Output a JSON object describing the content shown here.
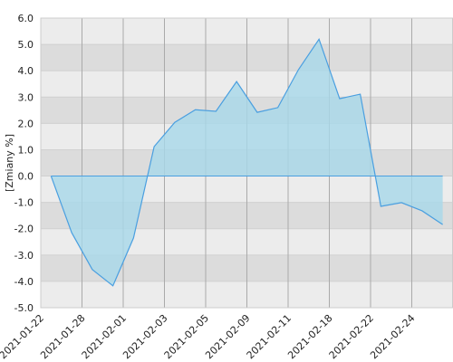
{
  "chart_data": {
    "type": "area",
    "y_label": "[Zmiany %]",
    "xticks": [
      "2021-01-22",
      "2021-01-28",
      "2021-02-01",
      "2021-02-03",
      "2021-02-05",
      "2021-02-09",
      "2021-02-11",
      "2021-02-18",
      "2021-02-22",
      "2021-02-24"
    ],
    "values": [
      0.0,
      -2.15,
      -3.55,
      -4.17,
      -2.35,
      1.12,
      2.04,
      2.52,
      2.46,
      3.59,
      2.42,
      2.6,
      4.04,
      5.2,
      2.94,
      3.11,
      -1.15,
      -1.01,
      -1.32,
      -1.84
    ],
    "line_color": "#4a9fe0",
    "fill_color": "#a8d8ea",
    "ylim": [
      -5,
      6
    ],
    "yticks": [
      {
        "value": -5,
        "label": "-5.0"
      },
      {
        "value": -4,
        "label": "-4.0"
      },
      {
        "value": -3,
        "label": "-3.0"
      },
      {
        "value": -2,
        "label": "-2.0"
      },
      {
        "value": -1,
        "label": "-1.0"
      },
      {
        "value": 0,
        "label": "0.0"
      },
      {
        "value": 1,
        "label": "1.0"
      },
      {
        "value": 2,
        "label": "2.0"
      },
      {
        "value": 3,
        "label": "3.0"
      },
      {
        "value": 4,
        "label": "4.0"
      },
      {
        "value": 5,
        "label": "5.0"
      },
      {
        "value": 6,
        "label": "6.0"
      }
    ],
    "grid": true
  }
}
